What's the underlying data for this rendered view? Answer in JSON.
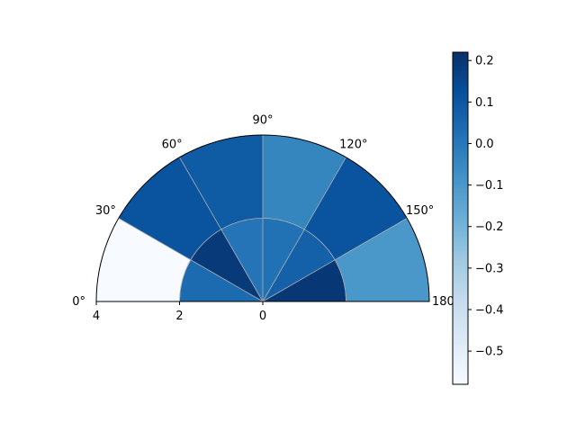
{
  "chart_data": {
    "type": "heatmap",
    "projection": "polar-half",
    "title": "",
    "colormap": "Blues",
    "angle_ticks": [
      "0°",
      "30°",
      "60°",
      "90°",
      "120°",
      "150°",
      "180°"
    ],
    "radial_ticks": [
      "4",
      "2",
      "0"
    ],
    "radial_edges": [
      0,
      2,
      4
    ],
    "theta_edges_deg": [
      0,
      30,
      60,
      90,
      120,
      150,
      180
    ],
    "cells": [
      [
        0.04,
        0.19,
        0.01,
        0.02,
        0.07,
        0.2
      ],
      [
        -0.58,
        0.11,
        0.09,
        -0.04,
        0.11,
        -0.1
      ]
    ],
    "colorbar": {
      "min": -0.58,
      "max": 0.22,
      "ticks": [
        0.2,
        0.1,
        0.0,
        -0.1,
        -0.2,
        -0.3,
        -0.4,
        -0.5
      ],
      "tick_labels": [
        "0.2",
        "0.1",
        "0.0",
        "−0.1",
        "−0.2",
        "−0.3",
        "−0.4",
        "−0.5"
      ]
    },
    "grid": true
  }
}
